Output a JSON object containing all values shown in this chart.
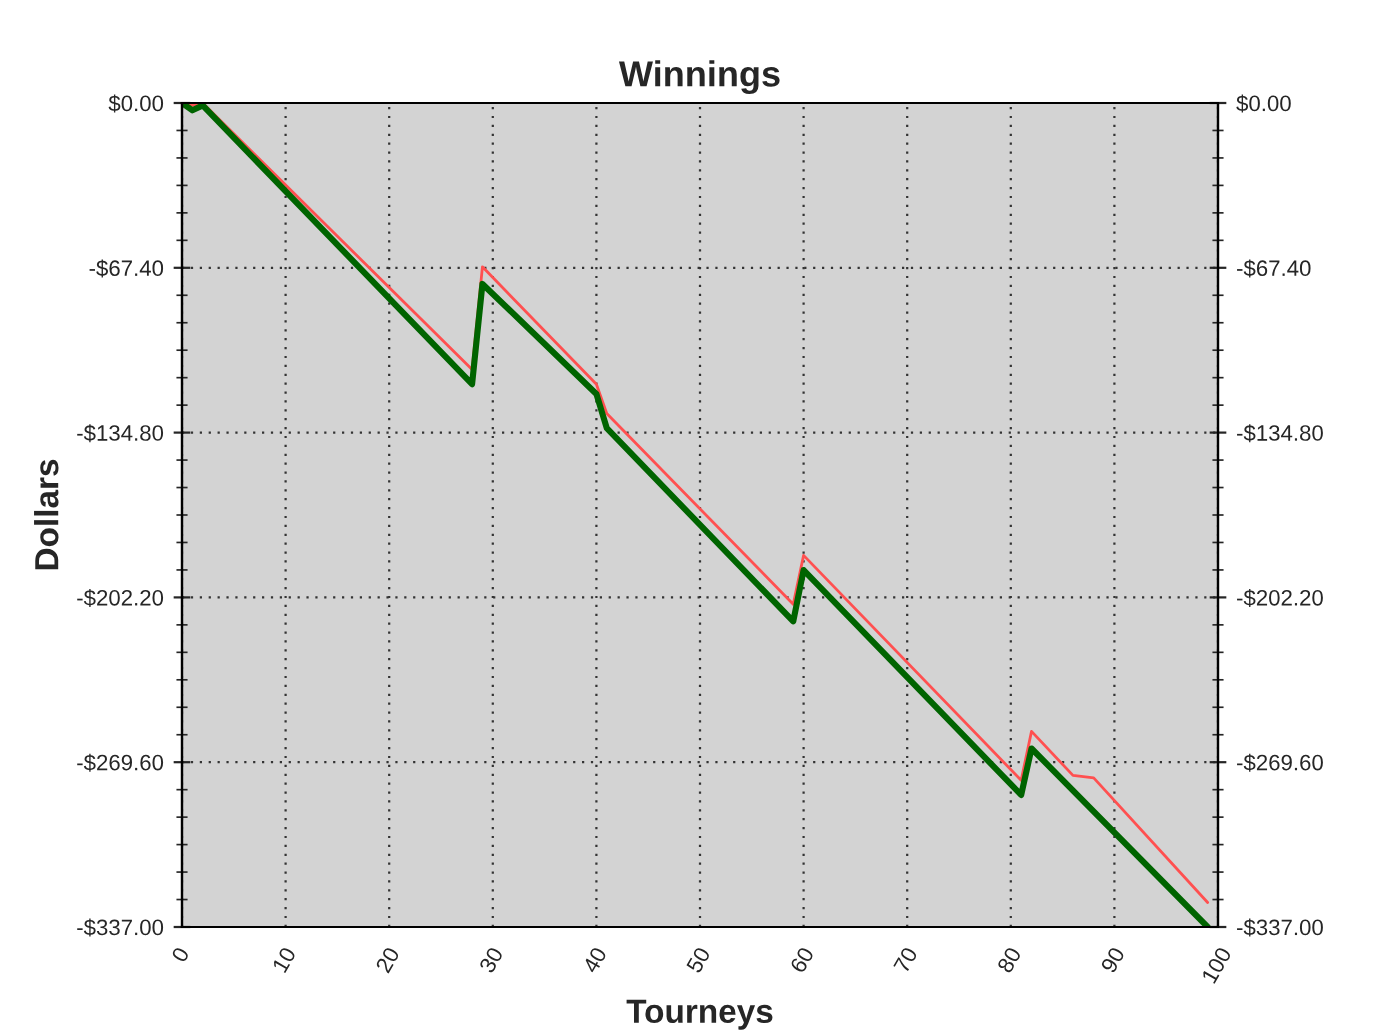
{
  "chart_data": {
    "type": "line",
    "title": "Winnings",
    "xlabel": "Tourneys",
    "ylabel": "Dollars",
    "xlim": [
      0,
      100
    ],
    "xticks": [
      0,
      10,
      20,
      30,
      40,
      50,
      60,
      70,
      80,
      90,
      100
    ],
    "ylim": [
      -337,
      0
    ],
    "yticks": [
      {
        "value": 0,
        "label": "$0.00"
      },
      {
        "value": -67.4,
        "label": "-$67.40"
      },
      {
        "value": -134.8,
        "label": "-$134.80"
      },
      {
        "value": -202.2,
        "label": "-$202.20"
      },
      {
        "value": -269.6,
        "label": "-$269.60"
      },
      {
        "value": -337,
        "label": "-$337.00"
      }
    ],
    "y2lim": [
      -337,
      0
    ],
    "y2ticks": [
      {
        "value": 0,
        "label": "$0.00"
      },
      {
        "value": -67.4,
        "label": "-$67.40"
      },
      {
        "value": -134.8,
        "label": "-$134.80"
      },
      {
        "value": -202.2,
        "label": "-$202.20"
      },
      {
        "value": -269.6,
        "label": "-$269.60"
      },
      {
        "value": -337,
        "label": "-$337.00"
      }
    ],
    "grid": true,
    "marker": "none",
    "line_style": "solid",
    "series": [
      {
        "color": "#ff5050",
        "x": [
          0,
          1,
          2,
          28,
          29,
          40,
          41,
          59,
          60,
          81,
          82,
          86,
          88,
          99
        ],
        "values": [
          0,
          -1,
          0,
          -109,
          -67,
          -115,
          -127,
          -205,
          -185,
          -277,
          -257,
          -275,
          -276,
          -327
        ]
      },
      {
        "color": "#006400",
        "x": [
          0,
          1,
          2,
          28,
          29,
          40,
          41,
          59,
          60,
          81,
          82,
          99
        ],
        "values": [
          0,
          -3,
          -1,
          -115,
          -74,
          -119,
          -133,
          -212,
          -191,
          -283,
          -264,
          -337
        ]
      }
    ]
  }
}
